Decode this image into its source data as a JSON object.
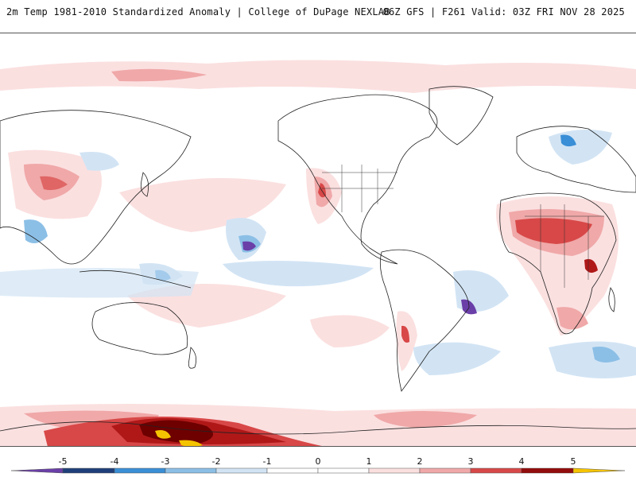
{
  "header": {
    "title": "2m Temp 1981-2010 Standardized Anomaly | College of DuPage NEXLAB",
    "run_info": "06Z GFS | F261 Valid: 03Z FRI NOV 28 2025"
  },
  "legend": {
    "ticks": [
      "-5",
      "-4",
      "-3",
      "-2",
      "-1",
      "0",
      "1",
      "2",
      "3",
      "4",
      "5"
    ],
    "colors": {
      "m5": "#6a3fa8",
      "m4": "#1f3f7a",
      "m3": "#3a8fd6",
      "m2": "#8cbfe6",
      "m1": "#d2e4f4",
      "z": "#ffffff",
      "p1": "#fbe0e0",
      "p2": "#f0a8a8",
      "p3": "#d84848",
      "p4": "#b01818",
      "p5": "#6e0000",
      "extreme": "#f5c400"
    }
  }
}
